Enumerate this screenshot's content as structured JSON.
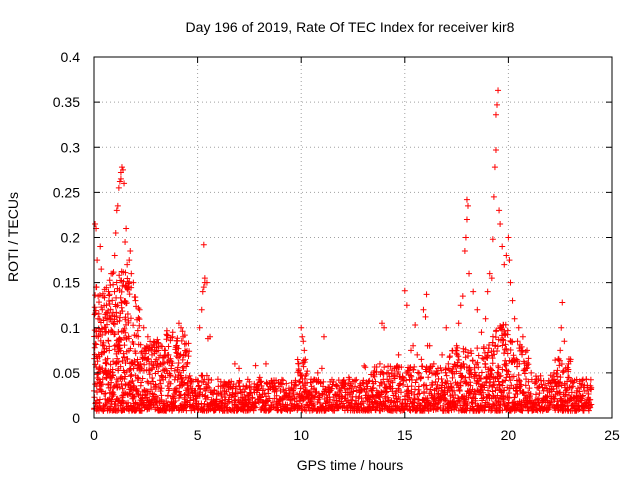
{
  "chart_data": {
    "type": "scatter",
    "title": "Day 196 of 2019, Rate Of TEC Index for receiver kir8",
    "xlabel": "GPS time / hours",
    "ylabel": "ROTI / TECUs",
    "xlim": [
      0,
      25
    ],
    "ylim": [
      0,
      0.4
    ],
    "xticks": [
      0,
      5,
      10,
      15,
      20,
      25
    ],
    "xtick_labels": [
      "0",
      "5",
      "10",
      "15",
      "20",
      "25"
    ],
    "yticks": [
      0,
      0.05,
      0.1,
      0.15,
      0.2,
      0.25,
      0.3,
      0.35,
      0.4
    ],
    "ytick_labels": [
      "0",
      "0.05",
      "0.1",
      "0.15",
      "0.2",
      "0.25",
      "0.3",
      "0.35",
      "0.4"
    ],
    "grid": true,
    "marker": "plus",
    "color": "#ff0000",
    "series": [
      {
        "name": "ROTI",
        "points": [
          [
            0.0,
            0.03
          ],
          [
            0.05,
            0.215
          ],
          [
            0.1,
            0.21
          ],
          [
            0.1,
            0.145
          ],
          [
            0.15,
            0.175
          ],
          [
            0.2,
            0.135
          ],
          [
            0.2,
            0.09
          ],
          [
            0.25,
            0.055
          ],
          [
            0.3,
            0.19
          ],
          [
            0.35,
            0.165
          ],
          [
            0.4,
            0.12
          ],
          [
            0.45,
            0.08
          ],
          [
            0.5,
            0.1
          ],
          [
            0.6,
            0.125
          ],
          [
            0.7,
            0.14
          ],
          [
            0.8,
            0.11
          ],
          [
            0.9,
            0.16
          ],
          [
            1.0,
            0.18
          ],
          [
            1.05,
            0.205
          ],
          [
            1.1,
            0.23
          ],
          [
            1.15,
            0.235
          ],
          [
            1.2,
            0.255
          ],
          [
            1.25,
            0.262
          ],
          [
            1.3,
            0.265
          ],
          [
            1.3,
            0.272
          ],
          [
            1.35,
            0.278
          ],
          [
            1.4,
            0.275
          ],
          [
            1.45,
            0.26
          ],
          [
            1.5,
            0.195
          ],
          [
            1.55,
            0.21
          ],
          [
            1.6,
            0.17
          ],
          [
            1.7,
            0.175
          ],
          [
            1.75,
            0.185
          ],
          [
            1.8,
            0.16
          ],
          [
            1.9,
            0.15
          ],
          [
            2.0,
            0.13
          ],
          [
            2.2,
            0.12
          ],
          [
            2.4,
            0.1
          ],
          [
            2.6,
            0.09
          ],
          [
            2.8,
            0.07
          ],
          [
            3.0,
            0.065
          ],
          [
            3.2,
            0.06
          ],
          [
            3.4,
            0.075
          ],
          [
            3.6,
            0.07
          ],
          [
            3.8,
            0.095
          ],
          [
            4.0,
            0.08
          ],
          [
            4.1,
            0.105
          ],
          [
            4.2,
            0.1
          ],
          [
            4.3,
            0.09
          ],
          [
            4.4,
            0.07
          ],
          [
            4.5,
            0.06
          ],
          [
            4.7,
            0.04
          ],
          [
            4.9,
            0.03
          ],
          [
            5.1,
            0.1
          ],
          [
            5.2,
            0.12
          ],
          [
            5.25,
            0.14
          ],
          [
            5.3,
            0.145
          ],
          [
            5.35,
            0.15
          ],
          [
            5.3,
            0.192
          ],
          [
            5.35,
            0.155
          ],
          [
            5.45,
            0.15
          ],
          [
            5.5,
            0.088
          ],
          [
            5.6,
            0.09
          ],
          [
            5.8,
            0.03
          ],
          [
            6.0,
            0.035
          ],
          [
            6.3,
            0.03
          ],
          [
            6.6,
            0.035
          ],
          [
            6.8,
            0.06
          ],
          [
            7.0,
            0.055
          ],
          [
            7.2,
            0.035
          ],
          [
            7.5,
            0.04
          ],
          [
            7.8,
            0.058
          ],
          [
            8.0,
            0.045
          ],
          [
            8.3,
            0.06
          ],
          [
            8.5,
            0.035
          ],
          [
            8.8,
            0.03
          ],
          [
            9.0,
            0.03
          ],
          [
            9.3,
            0.025
          ],
          [
            9.6,
            0.03
          ],
          [
            9.9,
            0.04
          ],
          [
            10.0,
            0.1
          ],
          [
            10.05,
            0.09
          ],
          [
            10.1,
            0.085
          ],
          [
            10.15,
            0.075
          ],
          [
            10.2,
            0.065
          ],
          [
            10.5,
            0.035
          ],
          [
            10.8,
            0.05
          ],
          [
            11.0,
            0.055
          ],
          [
            11.1,
            0.09
          ],
          [
            11.4,
            0.04
          ],
          [
            11.7,
            0.035
          ],
          [
            12.0,
            0.04
          ],
          [
            12.3,
            0.045
          ],
          [
            12.6,
            0.035
          ],
          [
            12.9,
            0.03
          ],
          [
            13.2,
            0.035
          ],
          [
            13.5,
            0.05
          ],
          [
            13.8,
            0.06
          ],
          [
            13.9,
            0.105
          ],
          [
            14.0,
            0.1
          ],
          [
            14.2,
            0.05
          ],
          [
            14.5,
            0.055
          ],
          [
            14.7,
            0.07
          ],
          [
            14.9,
            0.045
          ],
          [
            15.0,
            0.141
          ],
          [
            15.1,
            0.125
          ],
          [
            15.2,
            0.05
          ],
          [
            15.3,
            0.075
          ],
          [
            15.4,
            0.08
          ],
          [
            15.5,
            0.103
          ],
          [
            15.6,
            0.07
          ],
          [
            15.8,
            0.065
          ],
          [
            15.9,
            0.12
          ],
          [
            16.0,
            0.112
          ],
          [
            16.05,
            0.137
          ],
          [
            16.1,
            0.08
          ],
          [
            16.2,
            0.08
          ],
          [
            16.4,
            0.06
          ],
          [
            16.6,
            0.055
          ],
          [
            16.8,
            0.07
          ],
          [
            17.0,
            0.1
          ],
          [
            17.1,
            0.06
          ],
          [
            17.3,
            0.05
          ],
          [
            17.5,
            0.08
          ],
          [
            17.6,
            0.105
          ],
          [
            17.7,
            0.125
          ],
          [
            17.8,
            0.135
          ],
          [
            17.9,
            0.185
          ],
          [
            17.95,
            0.2
          ],
          [
            18.0,
            0.22
          ],
          [
            18.0,
            0.242
          ],
          [
            18.05,
            0.235
          ],
          [
            18.1,
            0.16
          ],
          [
            18.3,
            0.14
          ],
          [
            18.5,
            0.12
          ],
          [
            18.7,
            0.095
          ],
          [
            18.9,
            0.11
          ],
          [
            19.0,
            0.14
          ],
          [
            19.1,
            0.16
          ],
          [
            19.2,
            0.155
          ],
          [
            19.25,
            0.198
          ],
          [
            19.3,
            0.245
          ],
          [
            19.35,
            0.278
          ],
          [
            19.4,
            0.297
          ],
          [
            19.4,
            0.336
          ],
          [
            19.45,
            0.347
          ],
          [
            19.5,
            0.363
          ],
          [
            19.55,
            0.23
          ],
          [
            19.6,
            0.215
          ],
          [
            19.7,
            0.19
          ],
          [
            19.8,
            0.17
          ],
          [
            19.9,
            0.18
          ],
          [
            20.0,
            0.2
          ],
          [
            20.05,
            0.175
          ],
          [
            20.1,
            0.15
          ],
          [
            20.2,
            0.13
          ],
          [
            20.3,
            0.11
          ],
          [
            20.5,
            0.1
          ],
          [
            20.7,
            0.09
          ],
          [
            20.9,
            0.075
          ],
          [
            21.1,
            0.05
          ],
          [
            21.3,
            0.04
          ],
          [
            21.5,
            0.035
          ],
          [
            21.7,
            0.03
          ],
          [
            21.9,
            0.03
          ],
          [
            22.1,
            0.035
          ],
          [
            22.2,
            0.05
          ],
          [
            22.4,
            0.065
          ],
          [
            22.5,
            0.075
          ],
          [
            22.55,
            0.1
          ],
          [
            22.6,
            0.128
          ],
          [
            22.7,
            0.085
          ],
          [
            22.9,
            0.06
          ],
          [
            23.1,
            0.035
          ],
          [
            23.3,
            0.03
          ],
          [
            23.6,
            0.025
          ],
          [
            23.9,
            0.02
          ],
          [
            24.0,
            0.015
          ]
        ]
      }
    ]
  }
}
